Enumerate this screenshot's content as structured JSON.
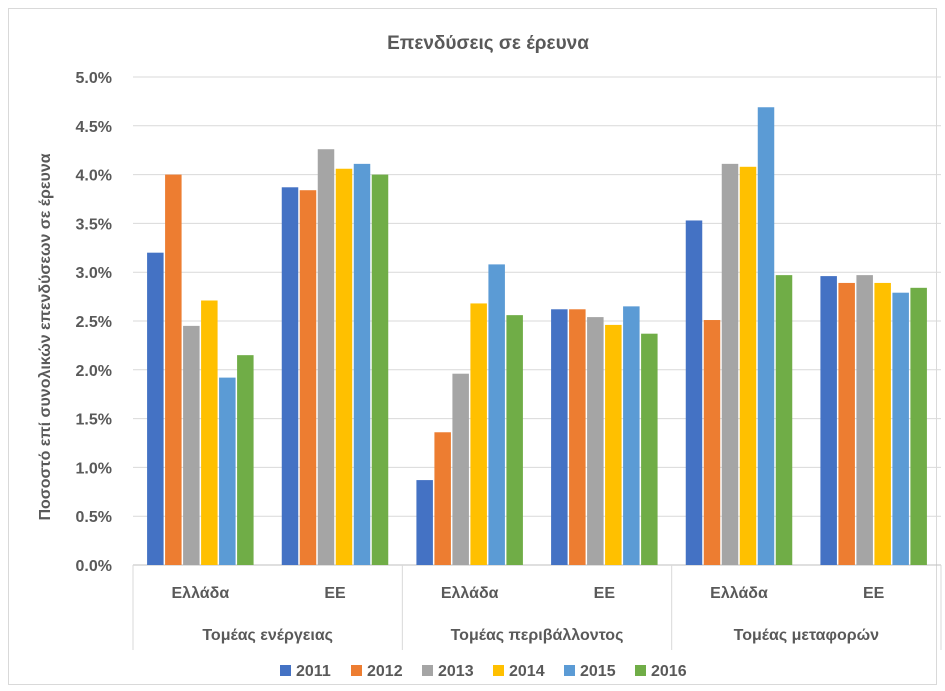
{
  "chart_data": {
    "type": "bar",
    "title": "Επενδύσεις σε έρευνα",
    "ylabel": "Ποσοστό επί συνολικών επενδύσεων σε έρευνα",
    "xlabel": "",
    "ylim": [
      0,
      5
    ],
    "y_ticks": [
      "0.0%",
      "0.5%",
      "1.0%",
      "1.5%",
      "2.0%",
      "2.5%",
      "3.0%",
      "3.5%",
      "4.0%",
      "4.5%",
      "5.0%"
    ],
    "grid": true,
    "legend_position": "bottom",
    "categories": [
      "Ελλάδα",
      "ΕΕ",
      "Ελλάδα",
      "ΕΕ",
      "Ελλάδα",
      "ΕΕ"
    ],
    "groups": [
      "Τομέας ενέργειας",
      "Τομέας περιβάλλοντος",
      "Τομέας μεταφορών"
    ],
    "series": [
      {
        "name": "2011",
        "color": "#4472c4",
        "values": [
          3.2,
          3.87,
          0.87,
          2.62,
          3.53,
          2.96
        ]
      },
      {
        "name": "2012",
        "color": "#ed7d31",
        "values": [
          4.0,
          3.84,
          1.36,
          2.62,
          2.51,
          2.89
        ]
      },
      {
        "name": "2013",
        "color": "#a5a5a5",
        "values": [
          2.45,
          4.26,
          1.96,
          2.54,
          4.11,
          2.97
        ]
      },
      {
        "name": "2014",
        "color": "#ffc000",
        "values": [
          2.71,
          4.06,
          2.68,
          2.46,
          4.08,
          2.89
        ]
      },
      {
        "name": "2015",
        "color": "#5b9bd5",
        "values": [
          1.92,
          4.11,
          3.08,
          2.65,
          4.69,
          2.79
        ]
      },
      {
        "name": "2016",
        "color": "#70ad47",
        "values": [
          2.15,
          4.0,
          2.56,
          2.37,
          2.97,
          2.84
        ]
      }
    ]
  }
}
